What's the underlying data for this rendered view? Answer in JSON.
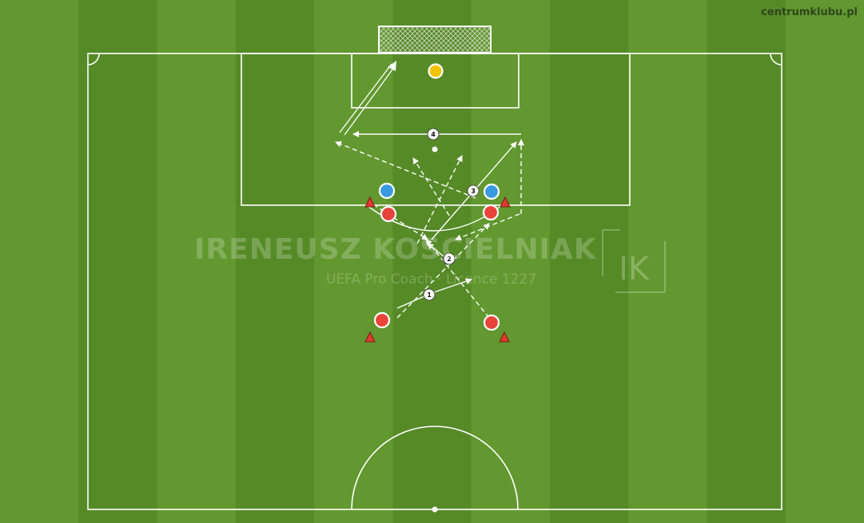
{
  "brand": {
    "site": "centrumklubu.pl"
  },
  "watermark": {
    "name": "IRENEUSZ KOSCIELNIAK",
    "subtitle": "UEFA Pro Coach · Licence 1227",
    "logo": "IK"
  },
  "colors": {
    "grass_light": "#62982f",
    "grass_dark": "#568a27",
    "lines": "#ffffff",
    "team_red": "#e8443a",
    "team_blue": "#3a9ae0",
    "goalkeeper": "#f2c400",
    "cone": "#e03a2f"
  },
  "drill": {
    "step_labels": [
      "1",
      "2",
      "3",
      "4"
    ]
  }
}
